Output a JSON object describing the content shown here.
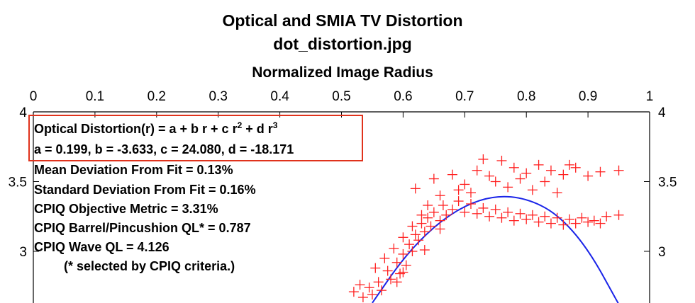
{
  "chart_data": {
    "type": "scatter",
    "title": "Optical and SMIA TV Distortion",
    "subtitle": "dot_distortion.jpg",
    "xlabel": "Normalized Image Radius",
    "ylabel": "",
    "xlim": [
      0,
      1
    ],
    "ylim": [
      2.0,
      4.0
    ],
    "x_tick_labels": [
      "0",
      "0.1",
      "0.2",
      "0.3",
      "0.4",
      "0.5",
      "0.6",
      "0.7",
      "0.8",
      "0.9",
      "1"
    ],
    "y_tick_labels": [
      "4",
      "3.5",
      "3"
    ],
    "y_tick_values": [
      4,
      3.5,
      3
    ],
    "grid": false,
    "annotations": {
      "formula_prefix": "Optical Distortion(r) = a + b r + c r",
      "formula_exp2": "2",
      "formula_mid": " + d r",
      "formula_exp3": "3",
      "coefficients": "a = 0.199, b = -3.633, c = 24.080, d = -18.171",
      "mean_dev": "Mean Deviation From Fit = 0.13%",
      "std_dev": "Standard Deviation From Fit = 0.16%",
      "cpiq_metric": "CPIQ Objective Metric = 3.31%",
      "cpiq_barrel": "CPIQ Barrel/Pincushion QL* = 0.787",
      "cpiq_wave": "CPIQ Wave QL = 4.126",
      "note": "(* selected by CPIQ criteria.)"
    },
    "colors": {
      "scatter": "#ff2020",
      "fit": "#1a24e8",
      "highlight_box": "#e0321c"
    },
    "series": [
      {
        "type": "scatter",
        "marker": "+",
        "points": [
          [
            0.52,
            2.71
          ],
          [
            0.535,
            2.67
          ],
          [
            0.545,
            2.74
          ],
          [
            0.55,
            2.69
          ],
          [
            0.56,
            2.78
          ],
          [
            0.565,
            2.72
          ],
          [
            0.575,
            2.86
          ],
          [
            0.58,
            2.8
          ],
          [
            0.59,
            2.92
          ],
          [
            0.595,
            2.84
          ],
          [
            0.6,
            2.98
          ],
          [
            0.605,
            2.9
          ],
          [
            0.61,
            3.05
          ],
          [
            0.615,
            3.0
          ],
          [
            0.62,
            3.12
          ],
          [
            0.625,
            3.08
          ],
          [
            0.63,
            3.2
          ],
          [
            0.635,
            3.14
          ],
          [
            0.64,
            3.24
          ],
          [
            0.645,
            3.18
          ],
          [
            0.65,
            3.28
          ],
          [
            0.66,
            3.22
          ],
          [
            0.665,
            3.33
          ],
          [
            0.67,
            3.26
          ],
          [
            0.68,
            3.3
          ],
          [
            0.69,
            3.36
          ],
          [
            0.7,
            3.28
          ],
          [
            0.71,
            3.34
          ],
          [
            0.72,
            3.27
          ],
          [
            0.73,
            3.31
          ],
          [
            0.74,
            3.25
          ],
          [
            0.75,
            3.3
          ],
          [
            0.76,
            3.24
          ],
          [
            0.77,
            3.28
          ],
          [
            0.78,
            3.22
          ],
          [
            0.79,
            3.27
          ],
          [
            0.8,
            3.23
          ],
          [
            0.81,
            3.26
          ],
          [
            0.82,
            3.21
          ],
          [
            0.83,
            3.25
          ],
          [
            0.84,
            3.2
          ],
          [
            0.85,
            3.24
          ],
          [
            0.86,
            3.19
          ],
          [
            0.87,
            3.23
          ],
          [
            0.88,
            3.2
          ],
          [
            0.89,
            3.24
          ],
          [
            0.9,
            3.21
          ],
          [
            0.91,
            3.22
          ],
          [
            0.92,
            3.2
          ],
          [
            0.93,
            3.25
          ],
          [
            0.95,
            3.26
          ],
          [
            0.62,
            3.45
          ],
          [
            0.65,
            3.52
          ],
          [
            0.68,
            3.55
          ],
          [
            0.7,
            3.48
          ],
          [
            0.72,
            3.58
          ],
          [
            0.74,
            3.54
          ],
          [
            0.76,
            3.65
          ],
          [
            0.78,
            3.6
          ],
          [
            0.8,
            3.56
          ],
          [
            0.82,
            3.62
          ],
          [
            0.84,
            3.58
          ],
          [
            0.86,
            3.55
          ],
          [
            0.88,
            3.6
          ],
          [
            0.9,
            3.54
          ],
          [
            0.92,
            3.57
          ],
          [
            0.95,
            3.58
          ],
          [
            0.73,
            3.66
          ],
          [
            0.75,
            3.5
          ],
          [
            0.79,
            3.52
          ],
          [
            0.83,
            3.5
          ],
          [
            0.87,
            3.62
          ],
          [
            0.66,
            3.4
          ],
          [
            0.69,
            3.44
          ],
          [
            0.71,
            3.42
          ],
          [
            0.77,
            3.46
          ],
          [
            0.81,
            3.44
          ],
          [
            0.85,
            3.42
          ],
          [
            0.57,
            2.95
          ],
          [
            0.585,
            3.02
          ],
          [
            0.6,
            3.1
          ],
          [
            0.615,
            3.18
          ],
          [
            0.63,
            3.26
          ],
          [
            0.64,
            3.33
          ],
          [
            0.555,
            2.88
          ],
          [
            0.53,
            2.76
          ],
          [
            0.6,
            2.85
          ],
          [
            0.59,
            2.78
          ],
          [
            0.635,
            3.01
          ],
          [
            0.66,
            3.16
          ]
        ]
      },
      {
        "type": "line",
        "name": "",
        "x": [
          0.55,
          0.6,
          0.65,
          0.7,
          0.75,
          0.8,
          0.85,
          0.9,
          0.95
        ],
        "y": [
          2.63,
          2.95,
          3.18,
          3.33,
          3.4,
          3.38,
          3.27,
          3.02,
          2.62
        ]
      }
    ]
  }
}
